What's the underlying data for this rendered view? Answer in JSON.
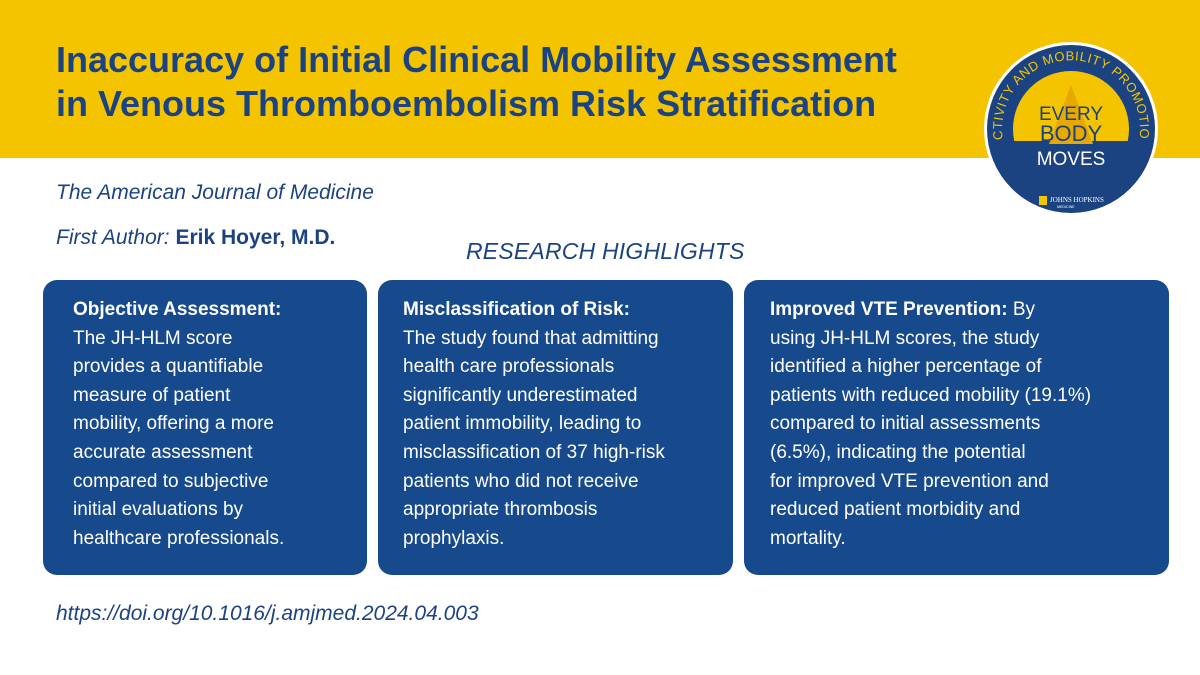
{
  "header": {
    "title_line1": "Inaccuracy of Initial Clinical Mobility Assessment",
    "title_line2": "in Venous Thromboembolism Risk Stratification"
  },
  "meta": {
    "journal": "The American Journal of Medicine",
    "author_label": "First Author:",
    "author_name": "Erik Hoyer, M.D."
  },
  "section_title": "RESEARCH HIGHLIGHTS",
  "cards": [
    {
      "heading": "Objective Assessment:",
      "lines": [
        "The JH-HLM score",
        "provides a quantifiable",
        "measure of patient",
        "mobility, offering a more",
        "accurate assessment",
        "compared to subjective",
        "initial evaluations by",
        "healthcare professionals."
      ]
    },
    {
      "heading": "Misclassification of Risk:",
      "lines": [
        "The study found that admitting",
        "health care professionals",
        "significantly underestimated",
        "patient immobility, leading to",
        "misclassification of 37 high-risk",
        "patients who did not receive",
        "appropriate thrombosis",
        "prophylaxis."
      ]
    },
    {
      "heading": "Improved VTE Prevention:",
      "first_tail": " By",
      "lines": [
        "using JH-HLM scores, the study",
        "identified a higher percentage of",
        "patients with reduced mobility (19.1%)",
        "compared to initial assessments",
        "(6.5%), indicating the potential",
        "for improved VTE prevention and",
        "reduced patient morbidity and",
        "mortality."
      ]
    }
  ],
  "doi": "https://doi.org/10.1016/j.amjmed.2024.04.003",
  "logo": {
    "ring_text": "ACTIVITY AND MOBILITY PROMOTION",
    "line1": "EVERY",
    "line2": "BODY",
    "line3": "MOVES",
    "org_line1": "JOHNS HOPKINS",
    "org_line2": "MEDICINE"
  },
  "colors": {
    "banner": "#f5c400",
    "navy": "#1b4281",
    "card": "#174a8c"
  }
}
